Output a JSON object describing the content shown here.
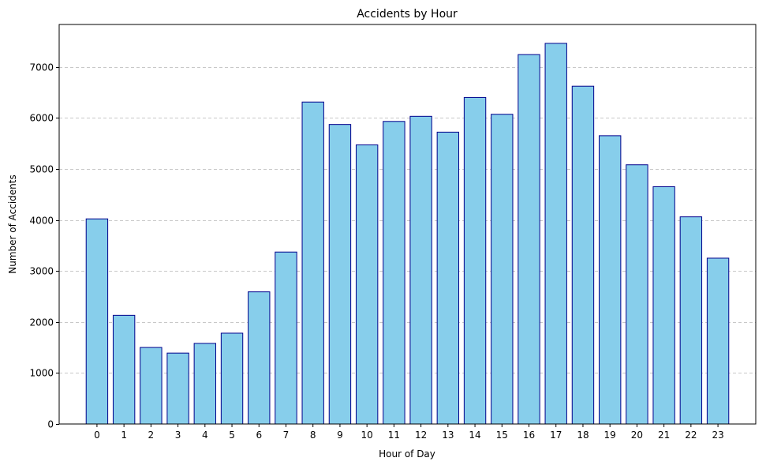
{
  "chart_data": {
    "type": "bar",
    "title": "Accidents by Hour",
    "xlabel": "Hour of Day",
    "ylabel": "Number of Accidents",
    "categories": [
      "0",
      "1",
      "2",
      "3",
      "4",
      "5",
      "6",
      "7",
      "8",
      "9",
      "10",
      "11",
      "12",
      "13",
      "14",
      "15",
      "16",
      "17",
      "18",
      "19",
      "20",
      "21",
      "22",
      "23"
    ],
    "values": [
      4020,
      2130,
      1500,
      1390,
      1580,
      1780,
      2590,
      3370,
      6310,
      5870,
      5470,
      5930,
      6030,
      5720,
      6400,
      6070,
      7240,
      7460,
      6620,
      5650,
      5080,
      4650,
      4060,
      3250
    ],
    "ylim": [
      0,
      7830
    ],
    "yticks": [
      0,
      1000,
      2000,
      3000,
      4000,
      5000,
      6000,
      7000
    ],
    "grid": "y-dashed",
    "colors": {
      "bar_fill": "#87ceeb",
      "bar_edge": "#00008b",
      "grid": "#c8c8c8"
    }
  }
}
